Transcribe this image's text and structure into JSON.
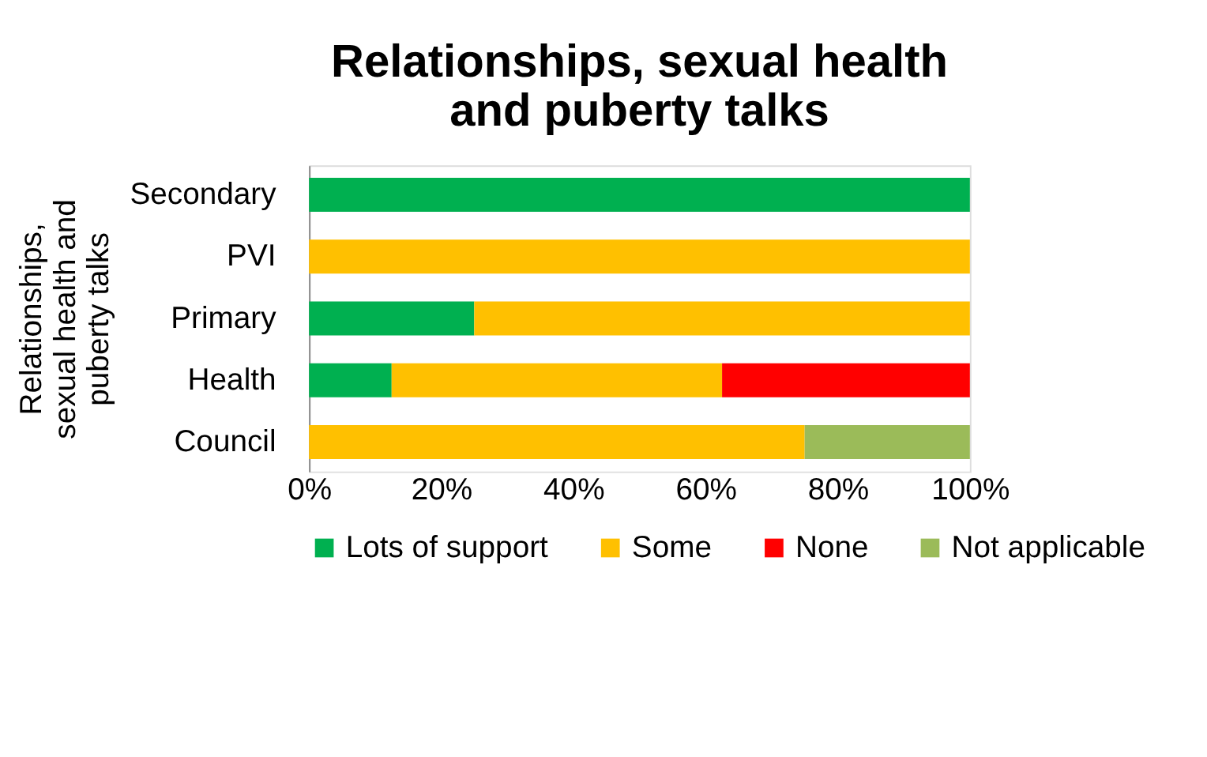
{
  "chart_data": {
    "type": "bar",
    "orientation": "horizontal",
    "stacked": true,
    "title": "Relationships, sexual health and puberty talks",
    "ylabel": "Relationships, sexual health and puberty talks",
    "categories": [
      "Secondary",
      "PVI",
      "Primary",
      "Health",
      "Council"
    ],
    "series": [
      {
        "name": "Lots of support",
        "color": "#00b050",
        "values": [
          100,
          0,
          25,
          12.5,
          0
        ]
      },
      {
        "name": "Some",
        "color": "#ffc000",
        "values": [
          0,
          100,
          75,
          50,
          75
        ]
      },
      {
        "name": "None",
        "color": "#ff0000",
        "values": [
          0,
          0,
          0,
          37.5,
          0
        ]
      },
      {
        "name": "Not applicable",
        "color": "#9bbb59",
        "values": [
          0,
          0,
          0,
          0,
          25
        ]
      }
    ],
    "xlim": [
      0,
      100
    ],
    "xticks": [
      {
        "value": 0,
        "label": "0%"
      },
      {
        "value": 20,
        "label": "20%"
      },
      {
        "value": 40,
        "label": "40%"
      },
      {
        "value": 60,
        "label": "60%"
      },
      {
        "value": 80,
        "label": "80%"
      },
      {
        "value": 100,
        "label": "100%"
      }
    ],
    "grid": false,
    "legend": "bottom"
  }
}
